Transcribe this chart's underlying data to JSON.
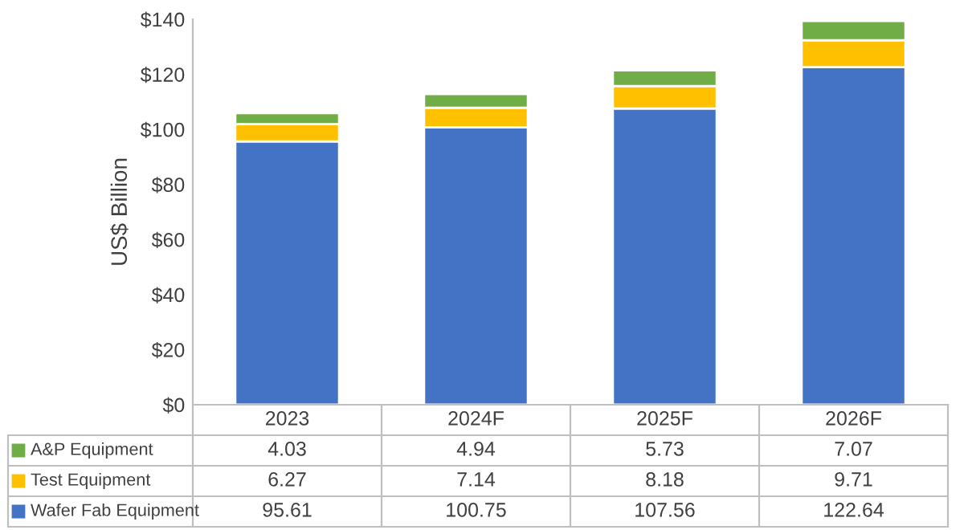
{
  "chart_data": {
    "type": "bar",
    "stacked": true,
    "ylabel": "US$ Billion",
    "categories": [
      "2023",
      "2024F",
      "2025F",
      "2026F"
    ],
    "series": [
      {
        "name": "Wafer Fab Equipment",
        "color": "#4472c4",
        "values": [
          95.61,
          100.75,
          107.56,
          122.64
        ]
      },
      {
        "name": "Test Equipment",
        "color": "#ffc000",
        "values": [
          6.27,
          7.14,
          8.18,
          9.71
        ]
      },
      {
        "name": "A&P Equipment",
        "color": "#70ad47",
        "values": [
          4.03,
          4.94,
          5.73,
          7.07
        ]
      }
    ],
    "ylim": [
      0,
      140
    ],
    "yticks": [
      {
        "value": 0,
        "label": "$0"
      },
      {
        "value": 20,
        "label": "$20"
      },
      {
        "value": 40,
        "label": "$40"
      },
      {
        "value": 60,
        "label": "$60"
      },
      {
        "value": 80,
        "label": "$80"
      },
      {
        "value": 100,
        "label": "$100"
      },
      {
        "value": 120,
        "label": "$120"
      },
      {
        "value": 140,
        "label": "$140"
      }
    ],
    "grid": false,
    "legend": "bottom",
    "data_labels": true
  }
}
